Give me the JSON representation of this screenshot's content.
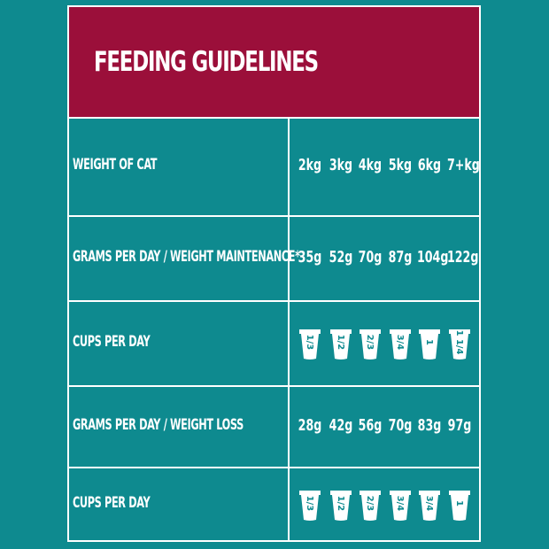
{
  "title": "FEEDING GUIDELINES",
  "colors": {
    "background": "#0e8a8f",
    "header": "#9b0f3a",
    "text": "#ffffff"
  },
  "rows": [
    {
      "label": "WEIGHT OF CAT",
      "values": [
        "2kg",
        "3kg",
        "4kg",
        "5kg",
        "6kg",
        "7+kg"
      ]
    },
    {
      "label": "GRAMS PER DAY / WEIGHT MAINTENANCE*",
      "values": [
        "35g",
        "52g",
        "70g",
        "87g",
        "104g",
        "122g"
      ]
    },
    {
      "label": "CUPS PER DAY",
      "cups": [
        "1/3",
        "1/2",
        "2/3",
        "3/4",
        "1",
        "1 1/4"
      ],
      "icon": "measuring-cup-icon"
    },
    {
      "label": "GRAMS PER DAY / WEIGHT LOSS",
      "values": [
        "28g",
        "42g",
        "56g",
        "70g",
        "83g",
        "97g"
      ]
    },
    {
      "label": "CUPS PER DAY",
      "cups": [
        "1/3",
        "1/2",
        "2/3",
        "3/4",
        "3/4",
        "1"
      ],
      "icon": "measuring-cup-icon"
    }
  ]
}
